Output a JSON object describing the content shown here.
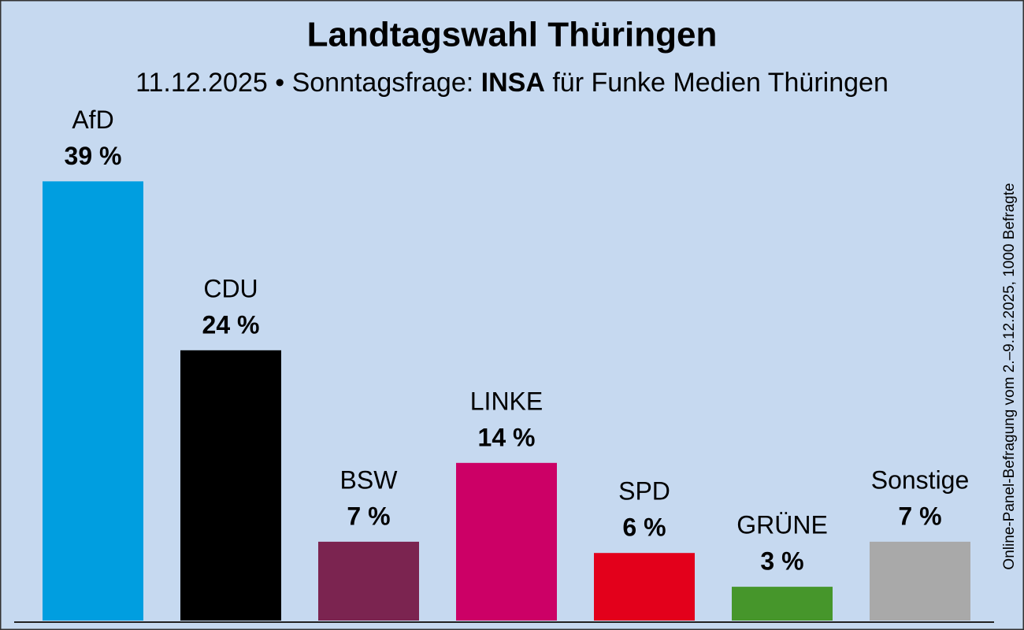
{
  "chart_data": {
    "type": "bar",
    "title": "Landtagswahl Thüringen",
    "subtitle": [
      "11.12.2025 • Sonntagsfrage:",
      "INSA",
      "für Funke Medien Thüringen"
    ],
    "note": "Online-Panel-Befragung vom 2.–9.12.2025, 1000 Befragte",
    "categories": [
      "AfD",
      "CDU",
      "BSW",
      "LINKE",
      "SPD",
      "GRÜNE",
      "Sonstige"
    ],
    "values": [
      39,
      24,
      7,
      14,
      6,
      3,
      7
    ],
    "value_labels": [
      "39 %",
      "24 %",
      "7 %",
      "14 %",
      "6 %",
      "3 %",
      "7 %"
    ],
    "colors": [
      "#009ee0",
      "#000000",
      "#7b2450",
      "#cc0066",
      "#e3001b",
      "#46962b",
      "#a9a9a9"
    ]
  }
}
